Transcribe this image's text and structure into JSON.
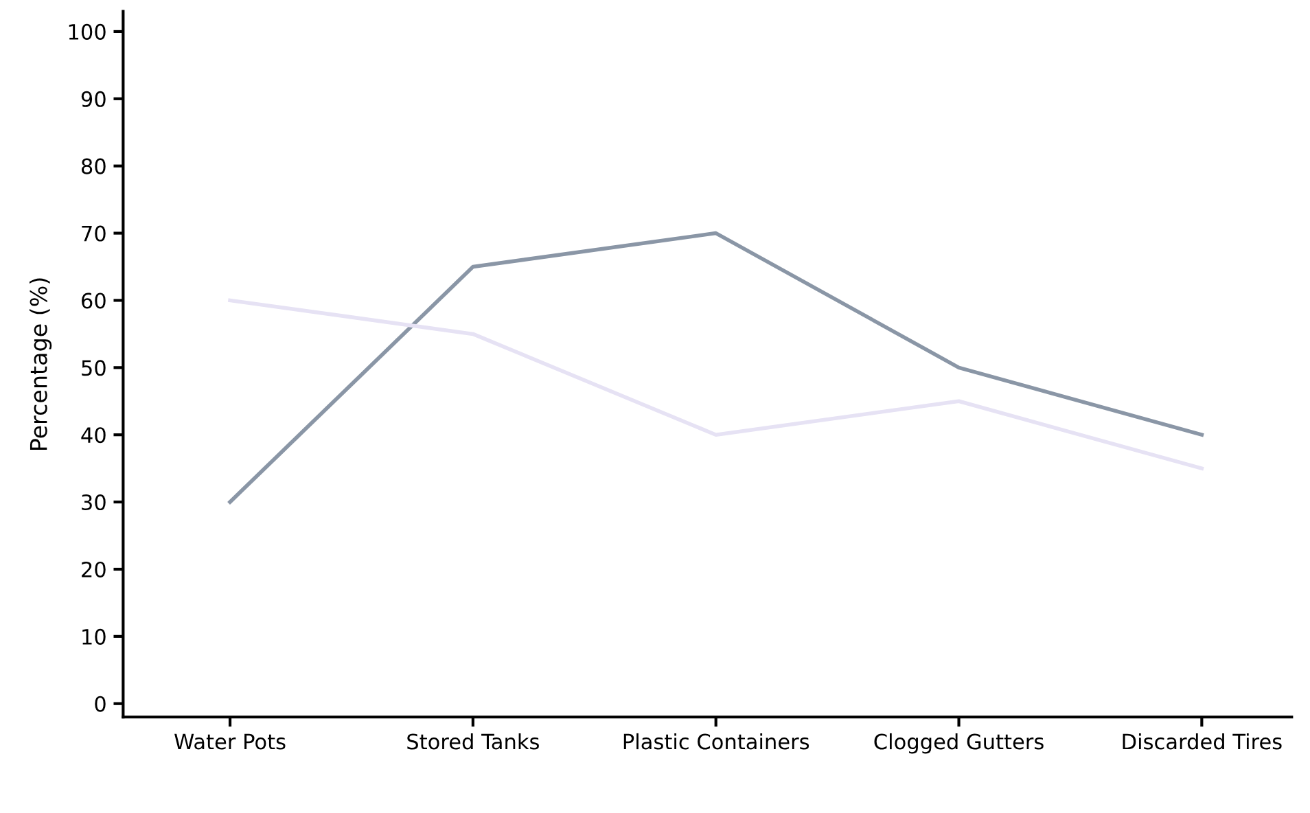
{
  "chart_data": {
    "type": "line",
    "ylabel": "Percentage (%)",
    "categories": [
      "Water Pots",
      "Stored Tanks",
      "Plastic Containers",
      "Clogged Gutters",
      "Discarded Tires"
    ],
    "series": [
      {
        "color": "#8a96a6",
        "values": [
          30,
          65,
          70,
          50,
          40
        ]
      },
      {
        "color": "#e6e2f4",
        "values": [
          60,
          55,
          40,
          45,
          35
        ]
      }
    ],
    "ylim": [
      -2,
      103
    ],
    "yticks": [
      0,
      10,
      20,
      30,
      40,
      50,
      60,
      70,
      80,
      90,
      100
    ],
    "grid": false,
    "marker": "none",
    "line_style": "solid"
  }
}
